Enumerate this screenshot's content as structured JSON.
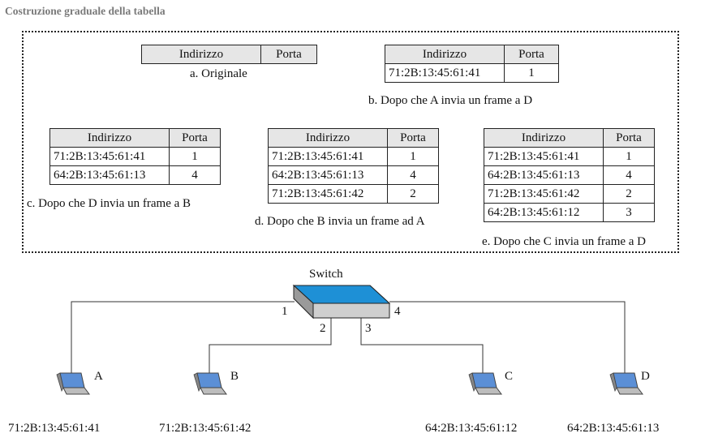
{
  "title": "Costruzione graduale della tabella",
  "headers": {
    "address": "Indirizzo",
    "port": "Porta"
  },
  "tables": [
    {
      "id": "a",
      "caption": "a. Originale",
      "rows": []
    },
    {
      "id": "b",
      "caption": "b. Dopo che A invia un frame a D",
      "rows": [
        {
          "address": "71:2B:13:45:61:41",
          "port": "1"
        }
      ]
    },
    {
      "id": "c",
      "caption": "c. Dopo che D invia un frame a B",
      "rows": [
        {
          "address": "71:2B:13:45:61:41",
          "port": "1"
        },
        {
          "address": "64:2B:13:45:61:13",
          "port": "4"
        }
      ]
    },
    {
      "id": "d",
      "caption": "d. Dopo che B invia un frame ad A",
      "rows": [
        {
          "address": "71:2B:13:45:61:41",
          "port": "1"
        },
        {
          "address": "64:2B:13:45:61:13",
          "port": "4"
        },
        {
          "address": "71:2B:13:45:61:42",
          "port": "2"
        }
      ]
    },
    {
      "id": "e",
      "caption": "e. Dopo che C invia un frame a D",
      "rows": [
        {
          "address": "71:2B:13:45:61:41",
          "port": "1"
        },
        {
          "address": "64:2B:13:45:61:13",
          "port": "4"
        },
        {
          "address": "71:2B:13:45:61:42",
          "port": "2"
        },
        {
          "address": "64:2B:13:45:61:12",
          "port": "3"
        }
      ]
    }
  ],
  "switch": {
    "label": "Switch",
    "ports": [
      "1",
      "2",
      "3",
      "4"
    ]
  },
  "hosts": [
    {
      "name": "A",
      "mac": "71:2B:13:45:61:41"
    },
    {
      "name": "B",
      "mac": "71:2B:13:45:61:42"
    },
    {
      "name": "C",
      "mac": "64:2B:13:45:61:12"
    },
    {
      "name": "D",
      "mac": "64:2B:13:45:61:13"
    }
  ],
  "colors": {
    "switch_top": "#1e90d6",
    "switch_body": "#d9d9d9",
    "laptop_screen": "#5b8fd6"
  }
}
